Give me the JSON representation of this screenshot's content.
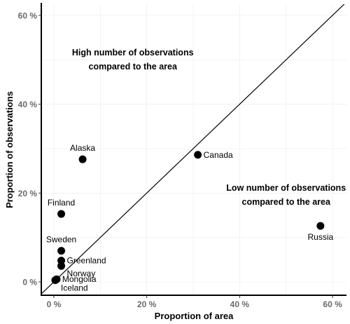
{
  "chart_data": {
    "type": "scatter",
    "title": "",
    "xlabel": "Proportion of area",
    "ylabel": "Proportion of observations",
    "xlim": [
      -2.7,
      63
    ],
    "ylim": [
      -3,
      62.5
    ],
    "grid": true,
    "x_ticks": [
      0,
      20,
      40,
      60
    ],
    "y_ticks": [
      0,
      20,
      40,
      60
    ],
    "x_tick_labels": [
      "0 %",
      "20 %",
      "40 %",
      "60 %"
    ],
    "y_tick_labels": [
      "0 %",
      "20 %",
      "40 %",
      "60 %"
    ],
    "reference_line": {
      "slope": 1,
      "intercept": 0
    },
    "points": [
      {
        "label": "Alaska",
        "x": 6.2,
        "y": 27.6,
        "label_pos": "above"
      },
      {
        "label": "Canada",
        "x": 31,
        "y": 28.6,
        "label_pos": "right"
      },
      {
        "label": "Finland",
        "x": 1.6,
        "y": 15.3,
        "label_pos": "above"
      },
      {
        "label": "Sweden",
        "x": 1.6,
        "y": 7,
        "label_pos": "above"
      },
      {
        "label": "Greenland",
        "x": 1.6,
        "y": 4.8,
        "label_pos": "right"
      },
      {
        "label": "Norway",
        "x": 1.6,
        "y": 3.6,
        "label_pos": "below-right"
      },
      {
        "label": "Mongolia",
        "x": 0.6,
        "y": 0.6,
        "label_pos": "right"
      },
      {
        "label": "Iceland",
        "x": 0.3,
        "y": 0.4,
        "label_pos": "below-right"
      },
      {
        "label": "Russia",
        "x": 57.4,
        "y": 12.6,
        "label_pos": "below"
      }
    ],
    "annotations": [
      {
        "lines": [
          "High number of observations",
          "compared to the area"
        ],
        "x": 17,
        "y": 51
      },
      {
        "lines": [
          "Low number of observations",
          "compared to the area"
        ],
        "x": 50,
        "y": 20.5
      }
    ]
  }
}
